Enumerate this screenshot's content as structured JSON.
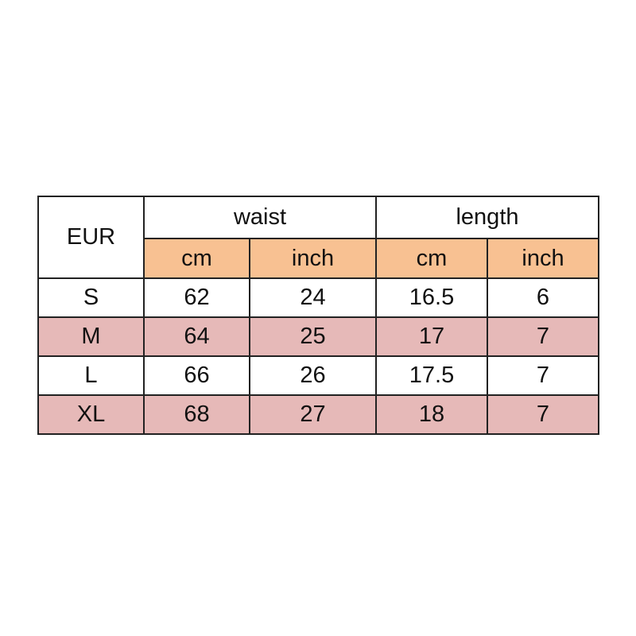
{
  "table": {
    "corner": "EUR",
    "groups": [
      "waist",
      "length"
    ],
    "units": [
      "cm",
      "inch",
      "cm",
      "inch"
    ],
    "rows": [
      {
        "size": "S",
        "values": [
          "62",
          "24",
          "16.5",
          "6"
        ]
      },
      {
        "size": "M",
        "values": [
          "64",
          "25",
          "17",
          "7"
        ]
      },
      {
        "size": "L",
        "values": [
          "66",
          "26",
          "17.5",
          "7"
        ]
      },
      {
        "size": "XL",
        "values": [
          "68",
          "27",
          "18",
          "7"
        ]
      }
    ]
  },
  "colors": {
    "unit_header": "#f8c192",
    "alt_row": "#e6b9b8",
    "border": "#222222"
  }
}
